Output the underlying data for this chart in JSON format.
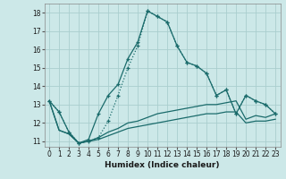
{
  "xlabel": "Humidex (Indice chaleur)",
  "background_color": "#cce8e8",
  "grid_color": "#aacece",
  "line_color": "#1a6b6b",
  "xlim": [
    -0.5,
    23.5
  ],
  "ylim": [
    10.7,
    18.5
  ],
  "yticks": [
    11,
    12,
    13,
    14,
    15,
    16,
    17,
    18
  ],
  "xticks": [
    0,
    1,
    2,
    3,
    4,
    5,
    6,
    7,
    8,
    9,
    10,
    11,
    12,
    13,
    14,
    15,
    16,
    17,
    18,
    19,
    20,
    21,
    22,
    23
  ],
  "x": [
    0,
    1,
    2,
    3,
    4,
    5,
    6,
    7,
    8,
    9,
    10,
    11,
    12,
    13,
    14,
    15,
    16,
    17,
    18,
    19,
    20,
    21,
    22,
    23
  ],
  "line1": [
    13.2,
    12.6,
    11.5,
    10.9,
    11.1,
    12.5,
    13.5,
    14.1,
    15.5,
    16.4,
    18.1,
    17.8,
    17.5,
    16.2,
    15.3,
    15.1,
    14.7,
    13.5,
    13.8,
    12.5,
    13.5,
    13.2,
    13.0,
    12.5
  ],
  "line2": [
    13.2,
    12.6,
    11.5,
    10.9,
    11.0,
    11.2,
    12.1,
    13.5,
    15.0,
    16.2,
    18.1,
    17.8,
    17.5,
    16.2,
    15.3,
    15.1,
    14.7,
    13.5,
    13.8,
    12.5,
    13.5,
    13.2,
    13.0,
    12.5
  ],
  "line3": [
    13.2,
    11.6,
    11.4,
    10.9,
    11.0,
    11.2,
    11.5,
    11.7,
    12.0,
    12.1,
    12.3,
    12.5,
    12.6,
    12.7,
    12.8,
    12.9,
    13.0,
    13.0,
    13.1,
    13.2,
    12.2,
    12.4,
    12.3,
    12.5
  ],
  "line4": [
    13.2,
    11.6,
    11.4,
    10.9,
    11.0,
    11.1,
    11.3,
    11.5,
    11.7,
    11.8,
    11.9,
    12.0,
    12.1,
    12.2,
    12.3,
    12.4,
    12.5,
    12.5,
    12.6,
    12.6,
    12.0,
    12.1,
    12.1,
    12.2
  ]
}
